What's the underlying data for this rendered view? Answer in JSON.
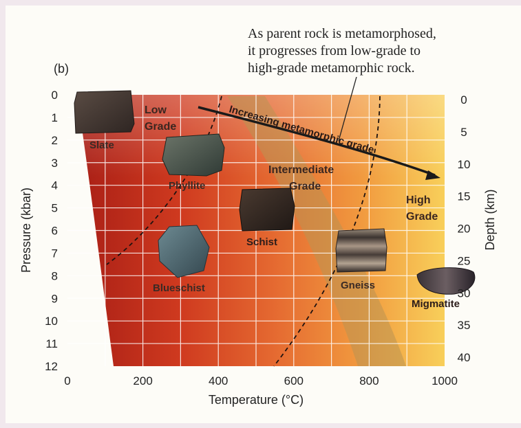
{
  "panel_label": "(b)",
  "caption": {
    "line1": "As parent rock is metamorphosed,",
    "line2": "it progresses from low-grade to",
    "line3": "high-grade metamorphic rock."
  },
  "axes": {
    "x_label": "Temperature (°C)",
    "y_left_label": "Pressure (kbar)",
    "y_right_label": "Depth (km)",
    "x_ticks": [
      "0",
      "200",
      "400",
      "600",
      "800",
      "1000"
    ],
    "y_left_ticks": [
      "0",
      "1",
      "2",
      "3",
      "4",
      "5",
      "6",
      "7",
      "8",
      "9",
      "10",
      "11",
      "12"
    ],
    "y_right_ticks": [
      "0",
      "5",
      "10",
      "15",
      "20",
      "25",
      "30",
      "35",
      "40"
    ]
  },
  "zones": {
    "low_l1": "Low",
    "low_l2": "Grade",
    "intermediate_l1": "Intermediate",
    "intermediate_l2": "Grade",
    "high_l1": "High",
    "high_l2": "Grade"
  },
  "arrow_label": "Increasing metamorphic grade",
  "rocks": {
    "slate": "Slate",
    "phyllite": "Phyllite",
    "schist": "Schist",
    "blueschist": "Blueschist",
    "gneiss": "Gneiss",
    "migmatite": "Migmatite"
  },
  "colors": {
    "low": "#bf2b1d",
    "mid": "#e7612f",
    "high": "#f6c24a",
    "band": "#b99352"
  }
}
